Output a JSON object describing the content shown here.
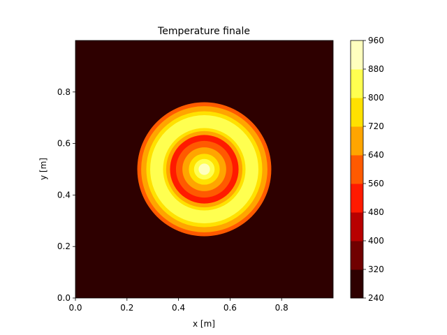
{
  "chart_data": {
    "type": "heatmap",
    "title": "Temperature finale",
    "xlabel": "x [m]",
    "ylabel": "y [m]",
    "xlim": [
      0,
      1
    ],
    "ylim": [
      0,
      1
    ],
    "x_ticks": [
      "0.0",
      "0.2",
      "0.4",
      "0.6",
      "0.8"
    ],
    "y_ticks": [
      "0.0",
      "0.2",
      "0.4",
      "0.6",
      "0.8"
    ],
    "colorbar": {
      "levels": [
        240,
        320,
        400,
        480,
        560,
        640,
        720,
        800,
        880,
        960
      ],
      "tick_labels": [
        "240",
        "320",
        "400",
        "480",
        "560",
        "640",
        "720",
        "800",
        "880",
        "960"
      ],
      "colors": [
        "#2e0000",
        "#700000",
        "#b80000",
        "#ff1a00",
        "#ff5a00",
        "#ffa500",
        "#ffe100",
        "#ffff50",
        "#ffffbe"
      ]
    },
    "field": {
      "center": [
        0.5,
        0.5
      ],
      "bands": [
        {
          "r_outer": 0.26,
          "value": 610
        },
        {
          "r_outer": 0.245,
          "value": 680
        },
        {
          "r_outer": 0.225,
          "value": 760
        },
        {
          "r_outer": 0.21,
          "value": 850
        },
        {
          "r_outer": 0.16,
          "value": 750
        },
        {
          "r_outer": 0.148,
          "value": 640
        },
        {
          "r_outer": 0.133,
          "value": 520
        },
        {
          "r_outer": 0.11,
          "value": 600
        },
        {
          "r_outer": 0.085,
          "value": 680
        },
        {
          "r_outer": 0.06,
          "value": 760
        },
        {
          "r_outer": 0.04,
          "value": 850
        },
        {
          "r_outer": 0.022,
          "value": 930
        }
      ],
      "background_value": 280
    }
  }
}
